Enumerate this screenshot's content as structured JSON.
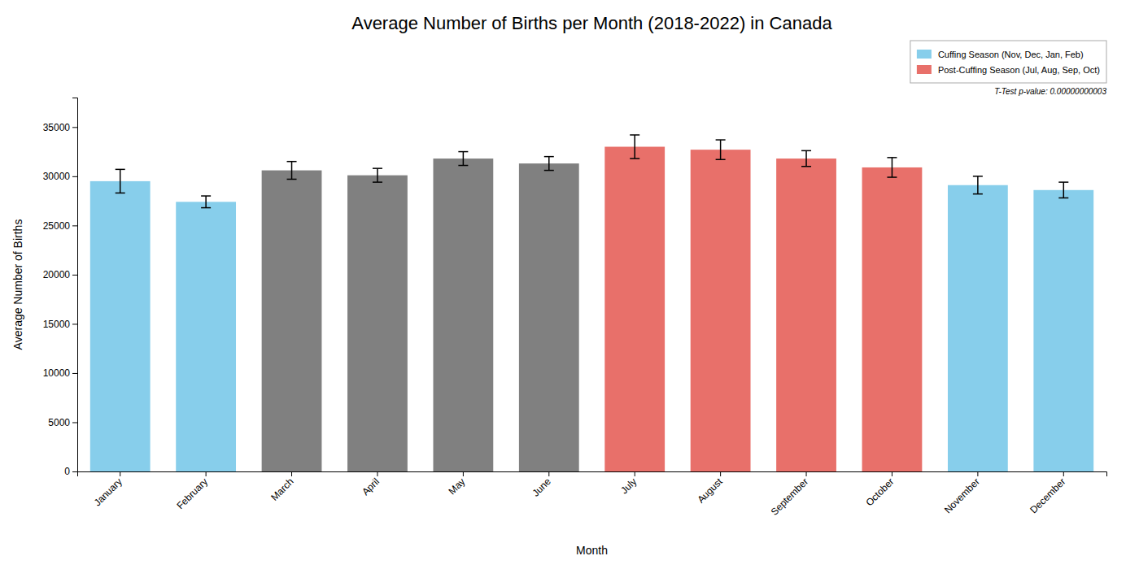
{
  "chart_data": {
    "type": "bar",
    "title": "Average Number of Births per Month (2018-2022) in Canada",
    "xlabel": "Month",
    "ylabel": "Average Number of Births",
    "categories": [
      "January",
      "February",
      "March",
      "April",
      "May",
      "June",
      "July",
      "August",
      "September",
      "October",
      "November",
      "December"
    ],
    "values": [
      29500,
      27400,
      30600,
      30100,
      31800,
      31300,
      33000,
      32700,
      31800,
      30900,
      29100,
      28600
    ],
    "errors": [
      1200,
      600,
      900,
      700,
      700,
      700,
      1200,
      1000,
      800,
      1000,
      900,
      800
    ],
    "colors": [
      "#87CEEB",
      "#87CEEB",
      "#808080",
      "#808080",
      "#808080",
      "#808080",
      "#E8706A",
      "#E8706A",
      "#E8706A",
      "#E8706A",
      "#87CEEB",
      "#87CEEB"
    ],
    "ylim": [
      0,
      38000
    ],
    "yticks": [
      0,
      5000,
      10000,
      15000,
      20000,
      25000,
      30000,
      35000
    ],
    "grid": false,
    "legend": "upper right",
    "legend_entries": [
      {
        "name": "Cuffing Season (Nov, Dec, Jan, Feb)",
        "color": "#87CEEB"
      },
      {
        "name": "Post-Cuffing Season (Jul, Aug, Sep, Oct)",
        "color": "#E8706A"
      }
    ],
    "annotations": [
      "T-Test p-value: 0.00000000003"
    ]
  }
}
